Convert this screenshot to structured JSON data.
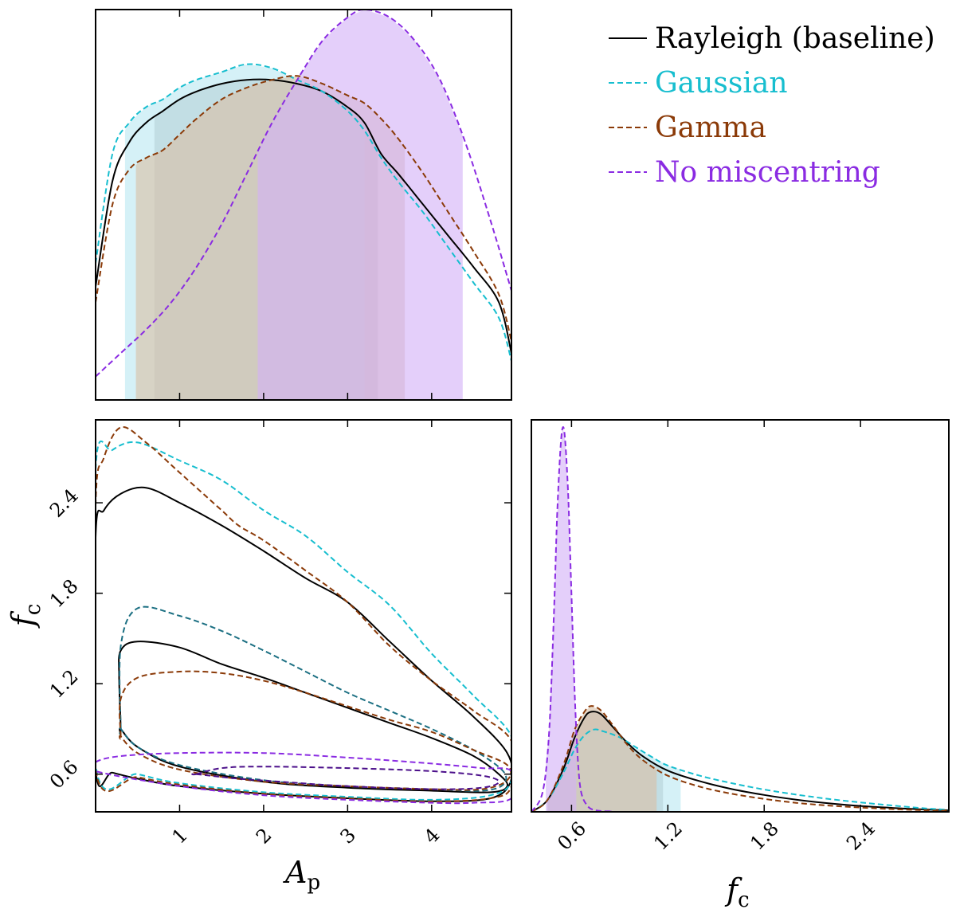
{
  "chart_data": [
    {
      "panel": "Ap-marginal",
      "type": "area",
      "xlabel": "",
      "ylabel": "",
      "xlim": [
        0.0,
        4.95
      ],
      "ylim": [
        0.0,
        1.0
      ],
      "series": [
        {
          "name": "Rayleigh (baseline)",
          "color": "#000000",
          "dash": false,
          "fill": "#b0b0b0",
          "x": [
            0.0,
            0.2,
            0.4,
            0.6,
            0.8,
            1.0,
            1.2,
            1.5,
            1.8,
            2.1,
            2.4,
            2.7,
            3.0,
            3.2,
            3.4,
            3.6,
            3.9,
            4.2,
            4.5,
            4.8,
            4.95
          ],
          "y": [
            0.29,
            0.56,
            0.66,
            0.71,
            0.74,
            0.77,
            0.79,
            0.81,
            0.82,
            0.82,
            0.81,
            0.79,
            0.75,
            0.71,
            0.63,
            0.58,
            0.5,
            0.42,
            0.34,
            0.25,
            0.12
          ],
          "interval": [
            0.7,
            3.36
          ]
        },
        {
          "name": "Gaussian",
          "color": "#17becf",
          "dash": true,
          "fill": "#bce9f2",
          "x": [
            0.0,
            0.2,
            0.4,
            0.6,
            0.8,
            1.0,
            1.2,
            1.5,
            1.8,
            2.1,
            2.4,
            2.7,
            3.0,
            3.2,
            3.4,
            3.6,
            3.9,
            4.2,
            4.5,
            4.8,
            4.95
          ],
          "y": [
            0.35,
            0.63,
            0.71,
            0.75,
            0.77,
            0.8,
            0.82,
            0.84,
            0.86,
            0.85,
            0.82,
            0.79,
            0.74,
            0.69,
            0.62,
            0.56,
            0.48,
            0.39,
            0.3,
            0.21,
            0.1
          ],
          "interval": [
            0.35,
            3.2
          ]
        },
        {
          "name": "Gamma",
          "color": "#8b3a08",
          "dash": true,
          "fill": "#d8c0a6",
          "x": [
            0.0,
            0.2,
            0.4,
            0.6,
            0.8,
            1.0,
            1.2,
            1.5,
            1.8,
            2.1,
            2.4,
            2.7,
            3.0,
            3.2,
            3.4,
            3.6,
            3.9,
            4.2,
            4.5,
            4.8,
            4.95
          ],
          "y": [
            0.25,
            0.5,
            0.59,
            0.62,
            0.64,
            0.68,
            0.72,
            0.77,
            0.8,
            0.82,
            0.83,
            0.81,
            0.78,
            0.76,
            0.72,
            0.67,
            0.58,
            0.48,
            0.38,
            0.27,
            0.15
          ],
          "interval": [
            0.48,
            3.68
          ]
        },
        {
          "name": "No miscentring",
          "color": "#8a2be2",
          "dash": true,
          "fill": "#d4b2f7",
          "x": [
            0.0,
            0.3,
            0.6,
            0.9,
            1.2,
            1.5,
            1.8,
            2.1,
            2.4,
            2.7,
            3.0,
            3.2,
            3.5,
            3.8,
            4.1,
            4.4,
            4.7,
            4.95
          ],
          "y": [
            0.06,
            0.12,
            0.18,
            0.25,
            0.34,
            0.45,
            0.58,
            0.71,
            0.82,
            0.92,
            0.98,
            1.0,
            0.98,
            0.92,
            0.82,
            0.66,
            0.46,
            0.28
          ],
          "interval": [
            1.93,
            4.37
          ]
        }
      ]
    },
    {
      "panel": "joint",
      "type": "line",
      "xlabel": "A_p",
      "ylabel": "f_c",
      "xlim": [
        0.0,
        4.95
      ],
      "ylim": [
        0.35,
        2.95
      ],
      "x_ticks": [
        "1",
        "2",
        "3",
        "4"
      ],
      "x_tick_values": [
        1,
        2,
        3,
        4
      ],
      "y_ticks": [
        "0.6",
        "1.2",
        "1.8",
        "2.4"
      ],
      "y_tick_values": [
        0.6,
        1.2,
        1.8,
        2.4
      ],
      "contours": [
        {
          "series": "Rayleigh (baseline)",
          "level": "outer",
          "color": "#000000",
          "dash": false,
          "x": [
            0.0,
            0.1,
            0.3,
            0.6,
            1.0,
            1.5,
            2.0,
            2.5,
            3.0,
            3.5,
            4.0,
            4.5,
            4.9,
            4.94,
            4.7,
            4.0,
            3.0,
            2.0,
            1.0,
            0.5,
            0.2,
            0.0
          ],
          "y": [
            2.17,
            2.35,
            2.46,
            2.5,
            2.4,
            2.25,
            2.08,
            1.9,
            1.74,
            1.48,
            1.22,
            0.98,
            0.74,
            0.55,
            0.44,
            0.42,
            0.44,
            0.47,
            0.52,
            0.57,
            0.61,
            0.64
          ]
        },
        {
          "series": "Rayleigh (baseline)",
          "level": "inner",
          "color": "#000000",
          "dash": false,
          "x": [
            0.3,
            0.28,
            0.3,
            0.5,
            1.0,
            1.5,
            2.0,
            2.5,
            3.0,
            3.5,
            4.0,
            4.5,
            4.8,
            4.9,
            4.7,
            4.0,
            3.0,
            2.0,
            1.0,
            0.5,
            0.3
          ],
          "y": [
            0.9,
            1.25,
            1.42,
            1.48,
            1.44,
            1.33,
            1.24,
            1.14,
            1.04,
            0.94,
            0.84,
            0.72,
            0.6,
            0.52,
            0.48,
            0.49,
            0.51,
            0.55,
            0.65,
            0.78,
            0.9
          ]
        },
        {
          "series": "Gaussian",
          "level": "outer",
          "color": "#17becf",
          "dash": true,
          "x": [
            0.0,
            0.2,
            0.5,
            1.0,
            1.5,
            2.0,
            2.5,
            3.0,
            3.5,
            4.0,
            4.5,
            4.95,
            4.95,
            4.7,
            4.0,
            3.0,
            2.0,
            1.0,
            0.5,
            0.0
          ],
          "y": [
            2.62,
            2.75,
            2.8,
            2.68,
            2.55,
            2.35,
            2.18,
            1.94,
            1.72,
            1.4,
            1.12,
            0.85,
            0.56,
            0.46,
            0.43,
            0.45,
            0.48,
            0.54,
            0.6,
            0.66
          ]
        },
        {
          "series": "Gaussian",
          "level": "inner",
          "color": "#1b6f82",
          "dash": true,
          "x": [
            0.3,
            0.3,
            0.5,
            1.0,
            1.5,
            2.0,
            2.5,
            3.0,
            3.5,
            4.0,
            4.5,
            4.85,
            4.85,
            4.6,
            4.0,
            3.0,
            2.0,
            1.0,
            0.5,
            0.3
          ],
          "y": [
            0.9,
            1.45,
            1.7,
            1.65,
            1.55,
            1.42,
            1.28,
            1.14,
            1.02,
            0.9,
            0.76,
            0.62,
            0.53,
            0.49,
            0.5,
            0.52,
            0.56,
            0.66,
            0.78,
            0.9
          ]
        },
        {
          "series": "Gamma",
          "level": "outer",
          "color": "#8b3a08",
          "dash": true,
          "x": [
            0.0,
            0.1,
            0.3,
            0.6,
            1.0,
            1.5,
            1.7,
            2.0,
            2.5,
            3.0,
            3.5,
            4.0,
            4.5,
            4.95,
            4.95,
            4.7,
            4.0,
            3.0,
            2.0,
            1.0,
            0.5,
            0.0
          ],
          "y": [
            2.38,
            2.7,
            2.9,
            2.8,
            2.6,
            2.35,
            2.25,
            2.15,
            1.95,
            1.74,
            1.45,
            1.22,
            1.02,
            0.82,
            0.52,
            0.44,
            0.42,
            0.44,
            0.47,
            0.53,
            0.58,
            0.63
          ]
        },
        {
          "series": "Gamma",
          "level": "inner",
          "color": "#8b3a08",
          "dash": true,
          "x": [
            0.3,
            0.3,
            0.5,
            1.0,
            1.5,
            2.0,
            2.5,
            3.0,
            3.5,
            4.0,
            4.5,
            4.9,
            4.9,
            4.6,
            4.0,
            3.0,
            2.0,
            1.0,
            0.5,
            0.3
          ],
          "y": [
            0.85,
            1.1,
            1.24,
            1.28,
            1.27,
            1.22,
            1.14,
            1.05,
            0.96,
            0.88,
            0.76,
            0.66,
            0.56,
            0.5,
            0.5,
            0.52,
            0.55,
            0.63,
            0.74,
            0.85
          ]
        },
        {
          "series": "No miscentring",
          "level": "outer",
          "color": "#8a2be2",
          "dash": true,
          "x": [
            0.0,
            0.3,
            1.0,
            2.0,
            3.0,
            4.0,
            4.6,
            4.95,
            4.95,
            4.5,
            4.0,
            3.0,
            2.0,
            1.0,
            0.0
          ],
          "y": [
            0.68,
            0.72,
            0.74,
            0.74,
            0.71,
            0.67,
            0.64,
            0.62,
            0.44,
            0.41,
            0.41,
            0.43,
            0.46,
            0.52,
            0.62
          ]
        },
        {
          "series": "No miscentring",
          "level": "inner",
          "color": "#4b0f8a",
          "dash": true,
          "x": [
            1.2,
            1.5,
            2.0,
            3.0,
            4.0,
            4.6,
            4.8,
            4.6,
            4.0,
            3.0,
            2.2,
            1.7,
            1.2
          ],
          "y": [
            0.6,
            0.64,
            0.65,
            0.64,
            0.62,
            0.59,
            0.55,
            0.51,
            0.5,
            0.52,
            0.55,
            0.57,
            0.6
          ]
        }
      ]
    },
    {
      "panel": "fc-marginal",
      "type": "area",
      "xlabel": "f_c",
      "ylabel": "",
      "xlim": [
        0.35,
        2.95
      ],
      "ylim": [
        0.0,
        1.0
      ],
      "x_ticks": [
        "0.6",
        "1.2",
        "1.8",
        "2.4"
      ],
      "x_tick_values": [
        0.6,
        1.2,
        1.8,
        2.4
      ],
      "series": [
        {
          "name": "Rayleigh (baseline)",
          "color": "#000000",
          "dash": false,
          "fill": "#b0b0b0",
          "x": [
            0.35,
            0.45,
            0.55,
            0.62,
            0.68,
            0.72,
            0.78,
            0.85,
            0.95,
            1.05,
            1.2,
            1.4,
            1.6,
            1.8,
            2.0,
            2.2,
            2.4,
            2.6,
            2.8,
            2.95
          ],
          "y": [
            0.0,
            0.03,
            0.11,
            0.19,
            0.24,
            0.255,
            0.25,
            0.22,
            0.175,
            0.14,
            0.105,
            0.078,
            0.058,
            0.043,
            0.031,
            0.022,
            0.015,
            0.01,
            0.006,
            0.004
          ],
          "interval": [
            0.45,
            1.17
          ]
        },
        {
          "name": "Gaussian",
          "color": "#17becf",
          "dash": true,
          "fill": "#bce9f2",
          "x": [
            0.35,
            0.45,
            0.55,
            0.62,
            0.68,
            0.74,
            0.8,
            0.9,
            1.0,
            1.1,
            1.2,
            1.4,
            1.6,
            1.8,
            2.0,
            2.2,
            2.4,
            2.6,
            2.8,
            2.95
          ],
          "y": [
            0.0,
            0.03,
            0.1,
            0.16,
            0.195,
            0.21,
            0.205,
            0.19,
            0.165,
            0.14,
            0.118,
            0.092,
            0.073,
            0.057,
            0.044,
            0.033,
            0.024,
            0.016,
            0.009,
            0.005
          ],
          "interval": [
            0.45,
            1.28
          ]
        },
        {
          "name": "Gamma",
          "color": "#8b3a08",
          "dash": true,
          "fill": "#d8c0a6",
          "x": [
            0.35,
            0.45,
            0.55,
            0.62,
            0.68,
            0.72,
            0.78,
            0.85,
            0.95,
            1.05,
            1.2,
            1.4,
            1.6,
            1.8,
            2.0,
            2.2,
            2.4,
            2.6,
            2.8,
            2.95
          ],
          "y": [
            0.0,
            0.03,
            0.12,
            0.21,
            0.255,
            0.27,
            0.26,
            0.225,
            0.17,
            0.13,
            0.092,
            0.064,
            0.046,
            0.033,
            0.023,
            0.016,
            0.011,
            0.007,
            0.004,
            0.003
          ],
          "interval": [
            0.45,
            1.13
          ]
        },
        {
          "name": "No miscentring",
          "color": "#8a2be2",
          "dash": true,
          "fill": "#d4b2f7",
          "x": [
            0.35,
            0.42,
            0.46,
            0.49,
            0.51,
            0.53,
            0.545,
            0.56,
            0.58,
            0.6,
            0.62,
            0.64,
            0.66,
            0.7,
            0.75,
            0.85,
            1.0,
            2.95
          ],
          "y": [
            0.0,
            0.05,
            0.2,
            0.5,
            0.75,
            0.92,
            0.98,
            0.95,
            0.8,
            0.55,
            0.3,
            0.13,
            0.05,
            0.015,
            0.004,
            0.001,
            0.0,
            0.0
          ],
          "interval": [
            0.44,
            0.63
          ]
        }
      ]
    }
  ],
  "axes": {
    "joint_xlabel_main": "A",
    "joint_xlabel_sub": "p",
    "joint_ylabel_main": "f",
    "joint_ylabel_sub": "c",
    "fc_xlabel_main": "f",
    "fc_xlabel_sub": "c"
  },
  "legend": {
    "placement": "top-right",
    "entries": [
      {
        "label": "Rayleigh (baseline)",
        "color": "#000000",
        "dash": false
      },
      {
        "label": "Gaussian",
        "color": "#17becf",
        "dash": true
      },
      {
        "label": "Gamma",
        "color": "#8b3a08",
        "dash": true
      },
      {
        "label": "No miscentring",
        "color": "#8a2be2",
        "dash": true
      }
    ]
  }
}
